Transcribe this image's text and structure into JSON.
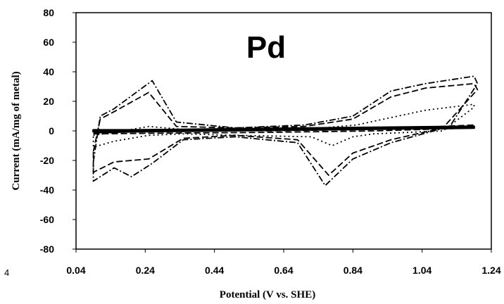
{
  "chart_data": {
    "type": "line",
    "title": "Pd",
    "xlabel": "Potential (V vs. SHE)",
    "ylabel": "Current (mA/mg of metal)",
    "xlim": [
      0.04,
      1.24
    ],
    "ylim": [
      -80,
      80
    ],
    "x_ticks": [
      "0.04",
      "0.24",
      "0.44",
      "0.64",
      "0.84",
      "1.04",
      "1.24"
    ],
    "y_ticks": [
      "80",
      "60",
      "40",
      "20",
      "0",
      "-20",
      "-40",
      "-60",
      "-80"
    ],
    "stray_label": "4",
    "grid": false,
    "legend": "none",
    "series": [
      {
        "style": "solid",
        "points": [
          [
            0.09,
            -1
          ],
          [
            0.2,
            -0.5
          ],
          [
            0.4,
            0
          ],
          [
            0.6,
            0.5
          ],
          [
            0.8,
            1
          ],
          [
            1.0,
            1.5
          ],
          [
            1.19,
            2
          ],
          [
            1.19,
            3
          ],
          [
            1.0,
            2.5
          ],
          [
            0.8,
            2
          ],
          [
            0.6,
            1.5
          ],
          [
            0.4,
            1
          ],
          [
            0.2,
            0.5
          ],
          [
            0.09,
            0.5
          ],
          [
            0.09,
            -1
          ]
        ]
      },
      {
        "style": "dashed",
        "points": [
          [
            0.09,
            -2
          ],
          [
            0.3,
            -1.5
          ],
          [
            0.6,
            -1
          ],
          [
            0.9,
            0
          ],
          [
            1.19,
            2
          ],
          [
            1.19,
            4
          ],
          [
            0.9,
            1
          ],
          [
            0.6,
            0
          ],
          [
            0.3,
            1
          ],
          [
            0.09,
            0
          ],
          [
            0.09,
            -2
          ]
        ]
      },
      {
        "style": "dotted",
        "points": [
          [
            0.09,
            -3
          ],
          [
            0.15,
            -1
          ],
          [
            0.25,
            3
          ],
          [
            0.35,
            1
          ],
          [
            0.5,
            1
          ],
          [
            0.7,
            1
          ],
          [
            0.85,
            4
          ],
          [
            0.95,
            9
          ],
          [
            1.05,
            14
          ],
          [
            1.19,
            18
          ],
          [
            1.19,
            16
          ],
          [
            1.1,
            0
          ],
          [
            0.9,
            -2
          ],
          [
            0.84,
            -4
          ],
          [
            0.78,
            -10
          ],
          [
            0.72,
            -4
          ],
          [
            0.5,
            -3
          ],
          [
            0.35,
            -2
          ],
          [
            0.25,
            -3
          ],
          [
            0.15,
            -7
          ],
          [
            0.09,
            -11
          ],
          [
            0.09,
            -3
          ]
        ]
      },
      {
        "style": "dashed",
        "points": [
          [
            0.09,
            -14
          ],
          [
            0.11,
            8
          ],
          [
            0.15,
            13
          ],
          [
            0.25,
            26
          ],
          [
            0.33,
            3
          ],
          [
            0.5,
            2
          ],
          [
            0.7,
            3
          ],
          [
            0.84,
            8
          ],
          [
            0.95,
            23
          ],
          [
            1.05,
            29
          ],
          [
            1.19,
            32
          ],
          [
            1.2,
            28
          ],
          [
            1.1,
            2
          ],
          [
            0.95,
            -6
          ],
          [
            0.84,
            -15
          ],
          [
            0.77,
            -30
          ],
          [
            0.68,
            -6
          ],
          [
            0.5,
            -3
          ],
          [
            0.35,
            -5
          ],
          [
            0.25,
            -19
          ],
          [
            0.15,
            -21
          ],
          [
            0.09,
            -28
          ],
          [
            0.09,
            -14
          ]
        ]
      },
      {
        "style": "dashdot",
        "points": [
          [
            0.09,
            -21
          ],
          [
            0.11,
            10
          ],
          [
            0.15,
            15
          ],
          [
            0.26,
            34
          ],
          [
            0.33,
            6
          ],
          [
            0.5,
            2
          ],
          [
            0.7,
            4
          ],
          [
            0.84,
            10
          ],
          [
            0.95,
            27
          ],
          [
            1.05,
            32
          ],
          [
            1.19,
            37
          ],
          [
            1.2,
            32
          ],
          [
            1.12,
            3
          ],
          [
            0.95,
            -8
          ],
          [
            0.84,
            -19
          ],
          [
            0.76,
            -37
          ],
          [
            0.68,
            -8
          ],
          [
            0.5,
            -4
          ],
          [
            0.35,
            -6
          ],
          [
            0.26,
            -22
          ],
          [
            0.2,
            -31
          ],
          [
            0.15,
            -25
          ],
          [
            0.09,
            -34
          ],
          [
            0.09,
            -21
          ]
        ]
      }
    ]
  }
}
